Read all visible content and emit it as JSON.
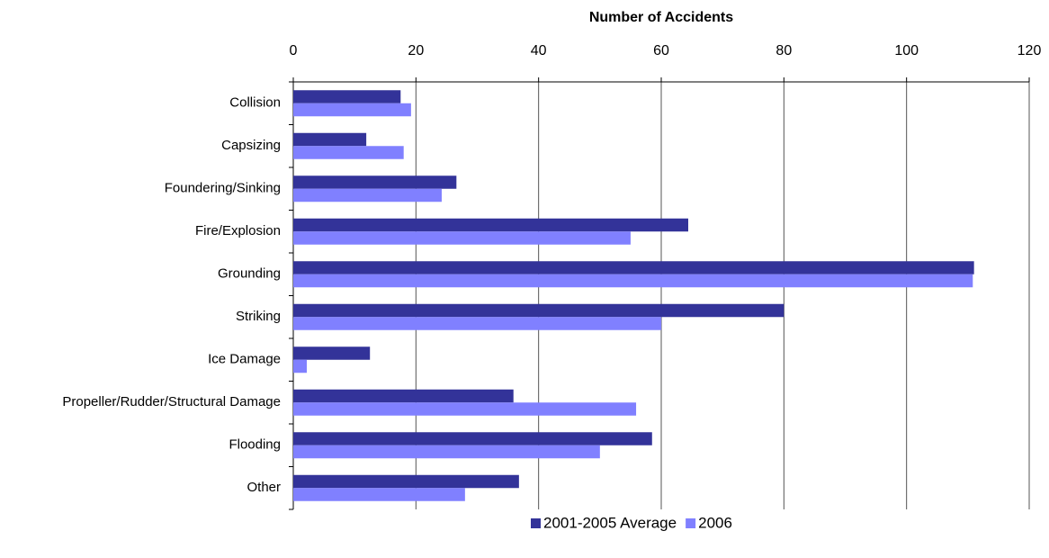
{
  "chart_data": {
    "type": "hbar",
    "title": "Number of Accidents",
    "categories": [
      "Collision",
      "Capsizing",
      "Foundering/Sinking",
      "Fire/Explosion",
      "Grounding",
      "Striking",
      "Ice Damage",
      "Propeller/Rudder/Structural Damage",
      "Flooding",
      "Other"
    ],
    "series": [
      {
        "name": "2001-2005 Average",
        "color": "#333399",
        "values": [
          17.5,
          11.9,
          26.6,
          64.4,
          111.0,
          80,
          12.5,
          35.9,
          58.5,
          36.8
        ]
      },
      {
        "name": "2006",
        "color": "#8080ff",
        "values": [
          19.2,
          18.0,
          24.2,
          55.0,
          110.8,
          60,
          2.2,
          55.9,
          50.0,
          28.0
        ]
      }
    ],
    "xlim": [
      0,
      120
    ],
    "xticks": [
      0,
      20,
      40,
      60,
      80,
      100,
      120
    ],
    "grid": true,
    "legend": "bottom"
  }
}
